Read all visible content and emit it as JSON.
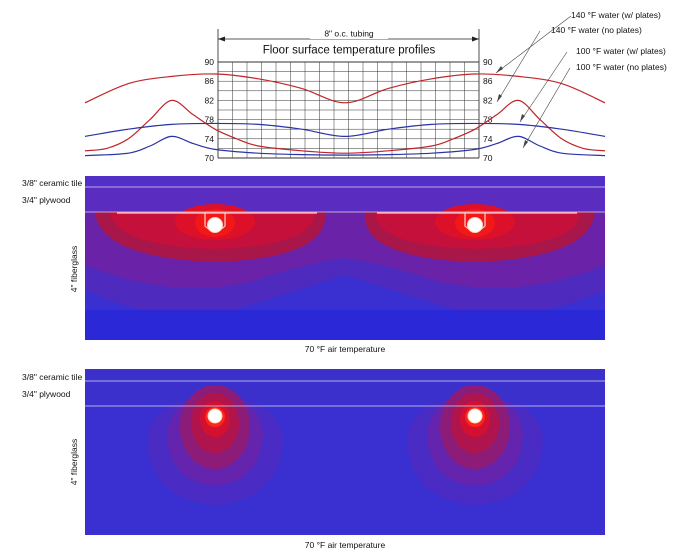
{
  "chart_data": {
    "type": "line",
    "title": "Floor surface temperature profiles",
    "spacing_label": "8\" o.c. tubing",
    "y_ticks": [
      90,
      86,
      82,
      78,
      74,
      70
    ],
    "ylim": [
      70,
      90
    ],
    "x_unit_count": 24,
    "series": [
      {
        "name": "140 °F water (w/ plates)",
        "color": "#c0262a",
        "x": [
          0,
          2,
          4,
          6,
          8,
          10,
          12,
          14,
          16,
          18,
          20,
          22,
          24
        ],
        "values": [
          81.5,
          85.5,
          87.0,
          87.5,
          86.5,
          84.5,
          81.5,
          84.5,
          86.5,
          87.5,
          87.0,
          85.5,
          81.5
        ]
      },
      {
        "name": "140 °F water (no plates)",
        "color": "#c0262a",
        "x": [
          0,
          1,
          2,
          3,
          4,
          5,
          6,
          7,
          8,
          10,
          12,
          14,
          16,
          17,
          18,
          19,
          20,
          21,
          22,
          23,
          24
        ],
        "values": [
          71.5,
          72.0,
          74.0,
          78.0,
          82.0,
          79.0,
          76.0,
          74.0,
          72.5,
          71.5,
          71.0,
          71.5,
          72.5,
          74.0,
          76.0,
          79.0,
          82.0,
          78.0,
          74.0,
          72.0,
          71.5
        ]
      },
      {
        "name": "100 °F water (w/ plates)",
        "color": "#2a34a6",
        "x": [
          0,
          2,
          4,
          6,
          8,
          10,
          12,
          14,
          16,
          18,
          20,
          22,
          24
        ],
        "values": [
          74.5,
          76.0,
          77.0,
          77.2,
          77.0,
          76.0,
          74.5,
          76.0,
          77.0,
          77.2,
          77.0,
          76.0,
          74.5
        ]
      },
      {
        "name": "100 °F water (no plates)",
        "color": "#2a34a6",
        "x": [
          0,
          2,
          3,
          4,
          5,
          6,
          8,
          10,
          12,
          14,
          16,
          18,
          19,
          20,
          21,
          22,
          24
        ],
        "values": [
          70.5,
          71.0,
          72.5,
          74.5,
          73.0,
          71.8,
          71.0,
          70.7,
          70.6,
          70.7,
          71.0,
          71.8,
          73.0,
          74.5,
          72.5,
          71.0,
          70.5
        ]
      }
    ]
  },
  "panels": [
    {
      "layers": {
        "tile": "3/8\" ceramic tile",
        "plywood": "3/4\" plywood",
        "fiberglass": "4\" fiberglass"
      },
      "bottom_label": "70 °F air temperature"
    },
    {
      "layers": {
        "tile": "3/8\" ceramic tile",
        "plywood": "3/4\" plywood",
        "fiberglass": "4\" fiberglass"
      },
      "bottom_label": "70 °F air temperature"
    }
  ],
  "colors": {
    "hot_red": "#ff1a10",
    "warm_red": "#c81030",
    "background_blue": "#3a2fd0",
    "deep_blue": "#2b28d8"
  }
}
